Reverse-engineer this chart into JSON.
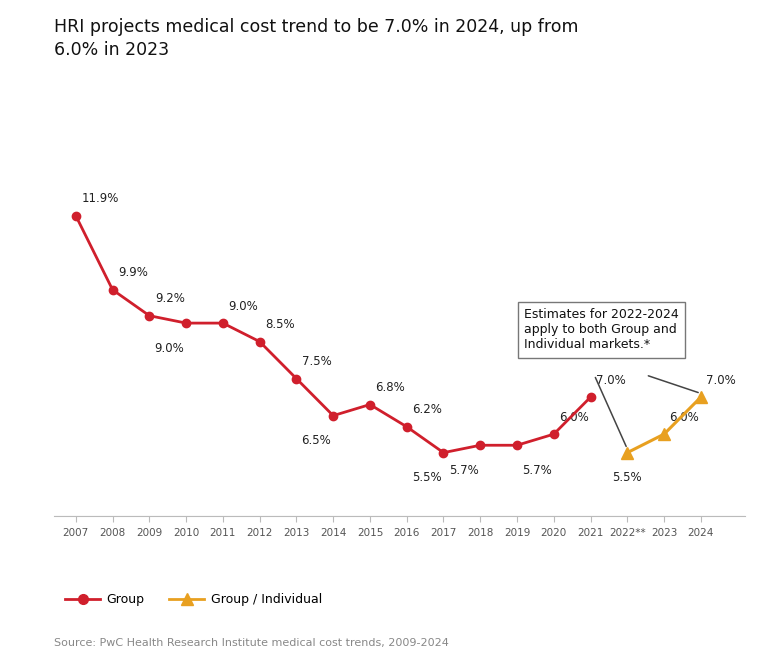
{
  "title": "HRI projects medical cost trend to be 7.0% in 2024, up from\n6.0% in 2023",
  "source": "Source: PwC Health Research Institute medical cost trends, 2009-2024",
  "group_years": [
    2007,
    2008,
    2009,
    2010,
    2011,
    2012,
    2013,
    2014,
    2015,
    2016,
    2017,
    2018,
    2019,
    2020,
    2021
  ],
  "group_values": [
    11.9,
    9.9,
    9.2,
    9.0,
    9.0,
    8.5,
    7.5,
    6.5,
    6.8,
    6.2,
    5.5,
    5.7,
    5.7,
    6.0,
    7.0
  ],
  "group_individual_years": [
    2022,
    2023,
    2024
  ],
  "group_individual_values": [
    5.5,
    6.0,
    7.0
  ],
  "group_color": "#d01f2c",
  "group_individual_color": "#e8a020",
  "annotation_text": "Estimates for 2022-2024\napply to both Group and\nIndividual markets.*",
  "xlabel_2022": "2022**",
  "background_color": "#ffffff",
  "xlim_min": 2006.4,
  "xlim_max": 2025.2,
  "ylim_min": 3.8,
  "ylim_max": 13.8,
  "legend_group": "Group",
  "legend_group_individual": "Group / Individual",
  "label_offsets": {
    "2007": [
      0.15,
      0.28,
      "left"
    ],
    "2008": [
      0.15,
      0.28,
      "left"
    ],
    "2009": [
      0.15,
      0.28,
      "left"
    ],
    "2010": [
      -0.05,
      -0.5,
      "right"
    ],
    "2011": [
      0.15,
      0.28,
      "left"
    ],
    "2012": [
      0.15,
      0.28,
      "left"
    ],
    "2013": [
      0.15,
      0.28,
      "left"
    ],
    "2014": [
      -0.05,
      -0.5,
      "right"
    ],
    "2015": [
      0.15,
      0.28,
      "left"
    ],
    "2016": [
      0.15,
      0.28,
      "left"
    ],
    "2017": [
      -0.05,
      -0.5,
      "right"
    ],
    "2018": [
      -0.05,
      -0.5,
      "right"
    ],
    "2019": [
      0.15,
      -0.5,
      "left"
    ],
    "2020": [
      0.15,
      0.28,
      "left"
    ],
    "2021": [
      0.15,
      0.28,
      "left"
    ]
  },
  "gi_label_offsets": {
    "2022": [
      0.0,
      -0.5,
      "center"
    ],
    "2023": [
      0.15,
      0.28,
      "left"
    ],
    "2024": [
      0.15,
      0.28,
      "left"
    ]
  }
}
